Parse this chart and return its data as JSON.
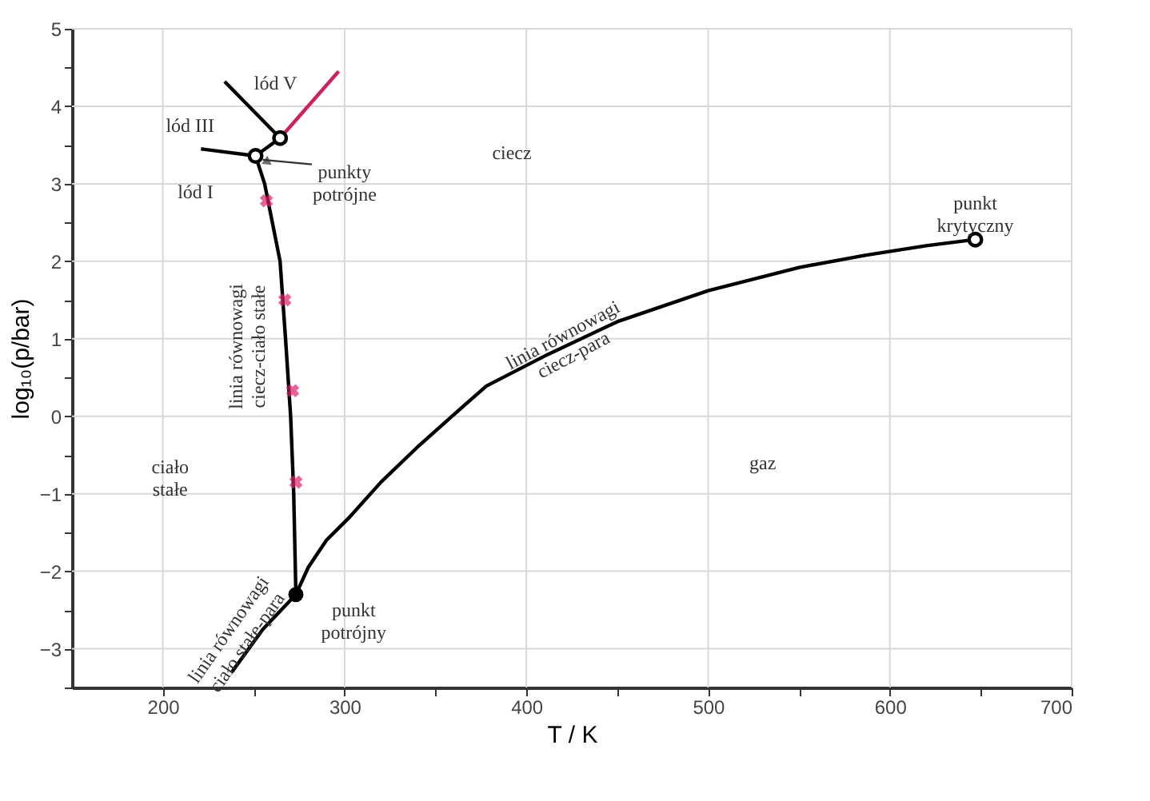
{
  "chart_data": {
    "type": "line",
    "xlabel": "T / K",
    "ylabel": "log₁₀(p/bar)",
    "xlim": [
      150,
      700
    ],
    "ylim": [
      -3.5,
      5
    ],
    "xticks": [
      200,
      {
        "value": 250,
        "label": null
      },
      300,
      {
        "value": 350,
        "label": null
      },
      400,
      {
        "value": 450,
        "label": null
      },
      500,
      {
        "value": 550,
        "label": null
      },
      600,
      {
        "value": 650,
        "label": null
      },
      700
    ],
    "yticks": [
      {
        "value": -3.5,
        "label": null
      },
      -3,
      {
        "value": -2.5,
        "label": null
      },
      -2,
      {
        "value": -1.5,
        "label": null
      },
      -1,
      {
        "value": -0.5,
        "label": null
      },
      0,
      {
        "value": 0.5,
        "label": null
      },
      1,
      {
        "value": 1.5,
        "label": null
      },
      2,
      {
        "value": 2.5,
        "label": null
      },
      3,
      {
        "value": 3.5,
        "label": null
      },
      4,
      {
        "value": 4.5,
        "label": null
      },
      5
    ],
    "grid": true,
    "line_style": "solid",
    "series": [
      {
        "color": "#000000",
        "x": [
          273.2,
          280,
          290,
          302,
          320,
          340,
          360,
          378,
          412,
          450,
          500,
          550,
          587,
          620,
          647
        ],
        "values": [
          -2.3,
          -1.95,
          -1.6,
          -1.32,
          -0.85,
          -0.4,
          0.02,
          0.39,
          0.8,
          1.22,
          1.62,
          1.92,
          2.08,
          2.2,
          2.28
        ]
      },
      {
        "color": "#000000",
        "x": [
          238,
          255,
          273.2
        ],
        "values": [
          -3.3,
          -2.75,
          -2.3
        ]
      },
      {
        "color": "#000000",
        "x": [
          273.2,
          272,
          270.3,
          267.5,
          264.5,
          256,
          251
        ],
        "values": [
          -2.3,
          -1,
          0,
          1,
          2,
          3,
          3.36
        ]
      },
      {
        "color": "#000000",
        "x": [
          221,
          251
        ],
        "values": [
          3.45,
          3.36
        ]
      },
      {
        "color": "#000000",
        "x": [
          251,
          264.5
        ],
        "values": [
          3.36,
          3.59
        ]
      },
      {
        "color": "#000000",
        "x": [
          234,
          264.5
        ],
        "values": [
          4.32,
          3.59
        ]
      },
      {
        "color": "#d0205a",
        "x": [
          264.5,
          296.7
        ],
        "values": [
          3.59,
          4.45
        ]
      },
      {
        "type": "scatter",
        "marker": "cross",
        "color": "#e0206a",
        "x": [
          257,
          267.1,
          271.4,
          273.2
        ],
        "values": [
          2.78,
          1.5,
          0.33,
          -0.85
        ]
      },
      {
        "type": "scatter",
        "marker": "circle",
        "color": "#000000",
        "x": [
          251,
          264.5,
          647
        ],
        "values": [
          3.36,
          3.59,
          2.28
        ]
      },
      {
        "type": "scatter",
        "marker": "circle",
        "color": "#000000",
        "x": [
          273.2
        ],
        "values": [
          -2.3
        ]
      }
    ],
    "annotations": [
      "lód V",
      "lód III",
      "lód I",
      "ciecz",
      {
        "text": "punkty\npotrójne",
        "x": 251,
        "y": 3.36
      },
      "punkt\nkrytyczny",
      "linia równowagi\nciecz-para",
      "linia równowagi\nciecz-ciało stałe",
      "ciało\nstałe",
      "gaz",
      "punkt\npotrójny",
      "linia równowagi\nciało stałe-para"
    ]
  }
}
